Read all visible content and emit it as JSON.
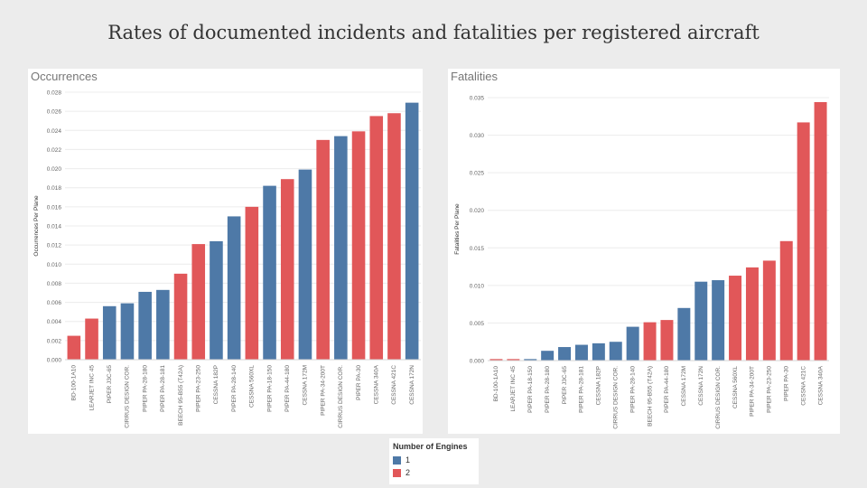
{
  "title": "Rates of documented incidents and fatalities per registered aircraft",
  "colors": {
    "1": "#4e79a7",
    "2": "#e15759"
  },
  "legend": {
    "title": "Number of Engines",
    "items": [
      {
        "label": "1",
        "color": "#4e79a7"
      },
      {
        "label": "2",
        "color": "#e15759"
      }
    ]
  },
  "chart_data": [
    {
      "type": "bar",
      "title": "Occurrences",
      "ylabel": "Occurrences Per Plane",
      "xlabel": "",
      "ylim": [
        0,
        0.028
      ],
      "yticks": [
        "0.000",
        "0.002",
        "0.004",
        "0.006",
        "0.008",
        "0.010",
        "0.012",
        "0.014",
        "0.016",
        "0.018",
        "0.020",
        "0.022",
        "0.024",
        "0.026",
        "0.028"
      ],
      "ytick_values": [
        0,
        0.002,
        0.004,
        0.006,
        0.008,
        0.01,
        0.012,
        0.014,
        0.016,
        0.018,
        0.02,
        0.022,
        0.024,
        0.026,
        0.028
      ],
      "grid": true,
      "categories": [
        "BD-100-1A10",
        "LEARJET INC 45",
        "PIPER J3C-65",
        "CIRRUS DESIGN COR.",
        "PIPER PA-28-180",
        "PIPER PA-28-181",
        "BEECH 95-B55 (T42A)",
        "PIPER PA-23-250",
        "CESSNA 182P",
        "PIPER PA-28-140",
        "CESSNA 560XL",
        "PIPER PA-18-150",
        "PIPER PA-44-180",
        "CESSNA 172M",
        "PIPER PA-34-200T",
        "CIRRUS DESIGN COR.",
        "PIPER PA-30",
        "CESSNA 340A",
        "CESSNA 421C",
        "CESSNA 172N"
      ],
      "values": [
        0.0025,
        0.0043,
        0.0056,
        0.0059,
        0.0071,
        0.0073,
        0.009,
        0.0121,
        0.0124,
        0.015,
        0.016,
        0.0182,
        0.0189,
        0.0199,
        0.023,
        0.0234,
        0.0239,
        0.0255,
        0.0258,
        0.0269
      ],
      "engines": [
        "2",
        "2",
        "1",
        "1",
        "1",
        "1",
        "2",
        "2",
        "1",
        "1",
        "2",
        "1",
        "2",
        "1",
        "2",
        "1",
        "2",
        "2",
        "2",
        "1"
      ]
    },
    {
      "type": "bar",
      "title": "Fatalities",
      "ylabel": "Fatalities Per Plane",
      "xlabel": "",
      "ylim": [
        0,
        0.035
      ],
      "yticks": [
        "0.000",
        "0.005",
        "0.010",
        "0.015",
        "0.020",
        "0.025",
        "0.030",
        "0.035"
      ],
      "ytick_values": [
        0,
        0.005,
        0.01,
        0.015,
        0.02,
        0.025,
        0.03,
        0.035
      ],
      "grid": true,
      "categories": [
        "BD-100-1A10",
        "LEARJET INC 45",
        "PIPER PA-18-150",
        "PIPER PA-28-180",
        "PIPER J3C-65",
        "PIPER PA-28-181",
        "CESSNA 182P",
        "CIRRUS DESIGN COR.",
        "PIPER PA-28-140",
        "BEECH 95-B55 (T42A)",
        "PIPER PA-44-180",
        "CESSNA 172M",
        "CESSNA 172N",
        "CIRRUS DESIGN COR.",
        "CESSNA 560XL",
        "PIPER PA-34-200T",
        "PIPER PA-23-250",
        "PIPER PA-30",
        "CESSNA 421C",
        "CESSNA 340A"
      ],
      "values": [
        0.0002,
        0.0002,
        0.0002,
        0.0013,
        0.0018,
        0.0021,
        0.0023,
        0.0025,
        0.0045,
        0.0051,
        0.0054,
        0.007,
        0.0105,
        0.0107,
        0.0113,
        0.0124,
        0.0133,
        0.0159,
        0.0317,
        0.0344
      ],
      "engines": [
        "2",
        "2",
        "1",
        "1",
        "1",
        "1",
        "1",
        "1",
        "1",
        "2",
        "2",
        "1",
        "1",
        "1",
        "2",
        "2",
        "2",
        "2",
        "2",
        "2"
      ]
    }
  ]
}
